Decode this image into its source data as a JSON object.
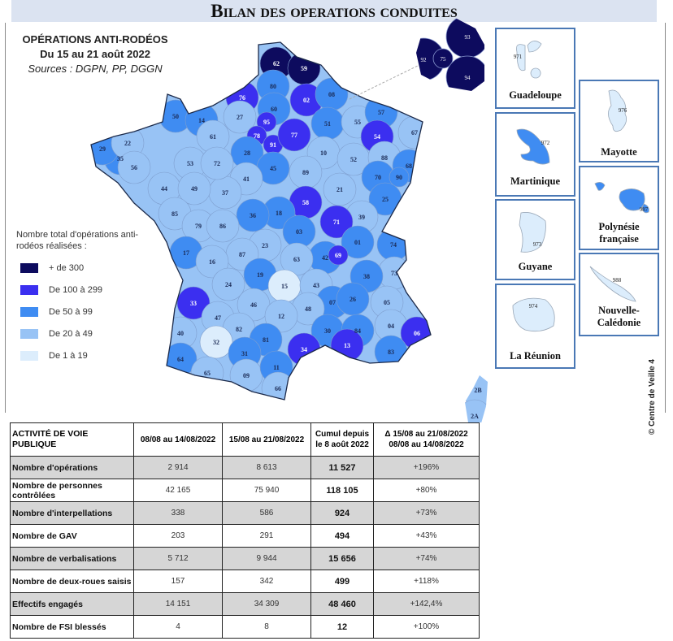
{
  "header": {
    "title": "Bilan des operations conduites"
  },
  "map_heading": {
    "line1": "OPÉRATIONS ANTI-RODÉOS",
    "line2": "Du 15 au 21 août 2022",
    "sources": "Sources : DGPN, PP, DGGN"
  },
  "legend": {
    "title": "Nombre total d'opérations anti-rodéos réalisées :",
    "items": [
      {
        "label": "+ de 300",
        "color": "#0d0b5e"
      },
      {
        "label": "De 100 à 299",
        "color": "#3b2ff0"
      },
      {
        "label": "De 50 à 99",
        "color": "#3f8cf2"
      },
      {
        "label": "De 20 à 49",
        "color": "#98c3f5"
      },
      {
        "label": "De 1 à 19",
        "color": "#dcedfc"
      }
    ]
  },
  "departments": [
    {
      "code": "62",
      "level": 5
    },
    {
      "code": "59",
      "level": 5
    },
    {
      "code": "80",
      "level": 3
    },
    {
      "code": "76",
      "level": 4
    },
    {
      "code": "02",
      "level": 4
    },
    {
      "code": "08",
      "level": 3
    },
    {
      "code": "60",
      "level": 3
    },
    {
      "code": "50",
      "level": 3
    },
    {
      "code": "14",
      "level": 3
    },
    {
      "code": "27",
      "level": 2
    },
    {
      "code": "95",
      "level": 4
    },
    {
      "code": "78",
      "level": 4
    },
    {
      "code": "91",
      "level": 4
    },
    {
      "code": "77",
      "level": 4
    },
    {
      "code": "51",
      "level": 3
    },
    {
      "code": "55",
      "level": 2
    },
    {
      "code": "57",
      "level": 3
    },
    {
      "code": "54",
      "level": 4
    },
    {
      "code": "67",
      "level": 2
    },
    {
      "code": "61",
      "level": 2
    },
    {
      "code": "28",
      "level": 3
    },
    {
      "code": "10",
      "level": 2
    },
    {
      "code": "52",
      "level": 2
    },
    {
      "code": "88",
      "level": 2
    },
    {
      "code": "68",
      "level": 3
    },
    {
      "code": "45",
      "level": 3
    },
    {
      "code": "89",
      "level": 2
    },
    {
      "code": "70",
      "level": 3
    },
    {
      "code": "90",
      "level": 3
    },
    {
      "code": "41",
      "level": 2
    },
    {
      "code": "21",
      "level": 2
    },
    {
      "code": "25",
      "level": 3
    },
    {
      "code": "37",
      "level": 2
    },
    {
      "code": "58",
      "level": 4
    },
    {
      "code": "18",
      "level": 3
    },
    {
      "code": "36",
      "level": 3
    },
    {
      "code": "39",
      "level": 2
    },
    {
      "code": "71",
      "level": 4
    },
    {
      "code": "35",
      "level": 3
    },
    {
      "code": "53",
      "level": 2
    },
    {
      "code": "72",
      "level": 2
    },
    {
      "code": "29",
      "level": 3
    },
    {
      "code": "22",
      "level": 2
    },
    {
      "code": "56",
      "level": 2
    },
    {
      "code": "44",
      "level": 2
    },
    {
      "code": "49",
      "level": 2
    },
    {
      "code": "85",
      "level": 2
    },
    {
      "code": "79",
      "level": 2
    },
    {
      "code": "86",
      "level": 2
    },
    {
      "code": "03",
      "level": 3
    },
    {
      "code": "01",
      "level": 3
    },
    {
      "code": "74",
      "level": 3
    },
    {
      "code": "42",
      "level": 3
    },
    {
      "code": "69",
      "level": 4
    },
    {
      "code": "23",
      "level": 2
    },
    {
      "code": "87",
      "level": 2
    },
    {
      "code": "17",
      "level": 3
    },
    {
      "code": "16",
      "level": 2
    },
    {
      "code": "63",
      "level": 2
    },
    {
      "code": "73",
      "level": 2
    },
    {
      "code": "19",
      "level": 3
    },
    {
      "code": "38",
      "level": 3
    },
    {
      "code": "24",
      "level": 2
    },
    {
      "code": "15",
      "level": 1
    },
    {
      "code": "43",
      "level": 2
    },
    {
      "code": "33",
      "level": 4
    },
    {
      "code": "46",
      "level": 2
    },
    {
      "code": "07",
      "level": 3
    },
    {
      "code": "26",
      "level": 3
    },
    {
      "code": "05",
      "level": 2
    },
    {
      "code": "48",
      "level": 2
    },
    {
      "code": "12",
      "level": 2
    },
    {
      "code": "47",
      "level": 2
    },
    {
      "code": "40",
      "level": 2
    },
    {
      "code": "82",
      "level": 2
    },
    {
      "code": "04",
      "level": 2
    },
    {
      "code": "06",
      "level": 4
    },
    {
      "code": "30",
      "level": 3
    },
    {
      "code": "84",
      "level": 3
    },
    {
      "code": "32",
      "level": 1
    },
    {
      "code": "81",
      "level": 3
    },
    {
      "code": "13",
      "level": 4
    },
    {
      "code": "34",
      "level": 4
    },
    {
      "code": "83",
      "level": 3
    },
    {
      "code": "31",
      "level": 3
    },
    {
      "code": "64",
      "level": 3
    },
    {
      "code": "65",
      "level": 2
    },
    {
      "code": "09",
      "level": 2
    },
    {
      "code": "11",
      "level": 3
    },
    {
      "code": "66",
      "level": 2
    },
    {
      "code": "2B",
      "level": 2
    },
    {
      "code": "2A",
      "level": 2
    }
  ],
  "paris_inset": [
    {
      "code": "92",
      "level": 5
    },
    {
      "code": "75",
      "level": 5
    },
    {
      "code": "93",
      "level": 5
    },
    {
      "code": "94",
      "level": 5
    }
  ],
  "overseas": [
    {
      "code": "971",
      "name": "Guadeloupe",
      "level": 1
    },
    {
      "code": "976",
      "name": "Mayotte",
      "level": 1
    },
    {
      "code": "972",
      "name": "Martinique",
      "level": 3
    },
    {
      "code": "987",
      "name": "Polynésie française",
      "level": 3
    },
    {
      "code": "973",
      "name": "Guyane",
      "level": 1
    },
    {
      "code": "988",
      "name": "Nouvelle-Calédonie",
      "level": 1
    },
    {
      "code": "974",
      "name": "La Réunion",
      "level": 1
    }
  ],
  "credit": "© Centre de Veille 4",
  "table": {
    "headers": [
      "ACTIVITÉ DE VOIE PUBLIQUE",
      "08/08 au 14/08/2022",
      "15/08 au 21/08/2022",
      "Cumul depuis le 8 août 2022",
      "Δ 15/08 au 21/08/2022 08/08 au 14/08/2022"
    ],
    "rows": [
      {
        "label": "Nombre d'opérations",
        "w1": "2 914",
        "w2": "8 613",
        "cumul": "11 527",
        "delta": "+196%"
      },
      {
        "label": "Nombre de personnes contrôlées",
        "w1": "42 165",
        "w2": "75 940",
        "cumul": "118 105",
        "delta": "+80%"
      },
      {
        "label": "Nombre d'interpellations",
        "w1": "338",
        "w2": "586",
        "cumul": "924",
        "delta": "+73%"
      },
      {
        "label": "Nombre de GAV",
        "w1": "203",
        "w2": "291",
        "cumul": "494",
        "delta": "+43%"
      },
      {
        "label": "Nombre de verbalisations",
        "w1": "5 712",
        "w2": "9 944",
        "cumul": "15 656",
        "delta": "+74%"
      },
      {
        "label": "Nombre de deux-roues saisis",
        "w1": "157",
        "w2": "342",
        "cumul": "499",
        "delta": "+118%"
      },
      {
        "label": "Effectifs engagés",
        "w1": "14 151",
        "w2": "34 309",
        "cumul": "48 460",
        "delta": "+142,4%"
      },
      {
        "label": "Nombre de FSI blessés",
        "w1": "4",
        "w2": "8",
        "cumul": "12",
        "delta": "+100%"
      }
    ]
  }
}
